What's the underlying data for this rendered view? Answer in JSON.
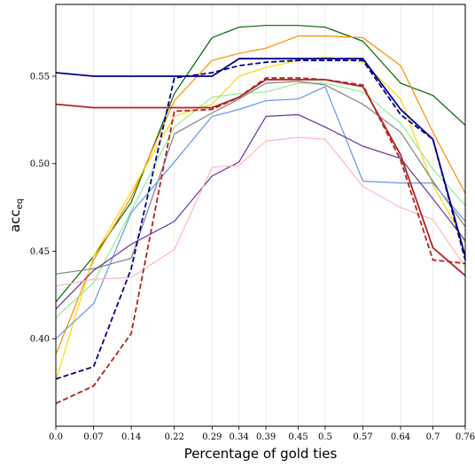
{
  "chart_data": {
    "type": "line",
    "title": "",
    "xlabel": "Percentage of gold ties",
    "ylabel": "acc",
    "ylabel_sub": "eq",
    "xlim": [
      0,
      0.76
    ],
    "ylim": [
      0.35,
      0.591
    ],
    "x": [
      0.0,
      0.07,
      0.14,
      0.22,
      0.29,
      0.34,
      0.39,
      0.45,
      0.5,
      0.57,
      0.64,
      0.7,
      0.76
    ],
    "x_tick_labels": [
      "0.0",
      "0.07",
      "0.14",
      "0.22",
      "0.29",
      "0.34",
      "0.39",
      "0.45",
      "0.5",
      "0.57",
      "0.64",
      "0.7",
      "0.76"
    ],
    "y_ticks": [
      0.4,
      0.45,
      0.5,
      0.55
    ],
    "y_tick_labels": [
      "0.40",
      "0.45",
      "0.50",
      "0.55"
    ],
    "grid": "vertical",
    "legend": "none",
    "series": [
      {
        "color": "#006400",
        "style": "solid",
        "width": 1.2,
        "values": [
          0.421,
          0.447,
          0.478,
          0.54,
          0.572,
          0.578,
          0.579,
          0.579,
          0.578,
          0.57,
          0.546,
          0.539,
          0.522
        ]
      },
      {
        "color": "#ff8c00",
        "style": "solid",
        "width": 1.2,
        "values": [
          0.391,
          0.445,
          0.481,
          0.536,
          0.559,
          0.563,
          0.566,
          0.573,
          0.573,
          0.572,
          0.556,
          0.518,
          0.483
        ]
      },
      {
        "color": "#ffd700",
        "style": "solid",
        "width": 1.2,
        "values": [
          0.376,
          0.447,
          0.484,
          0.527,
          0.534,
          0.55,
          0.555,
          0.559,
          0.561,
          0.558,
          0.537,
          0.488,
          0.455
        ]
      },
      {
        "color": "#90ee90",
        "style": "solid",
        "width": 1.2,
        "values": [
          0.412,
          0.432,
          0.473,
          0.521,
          0.538,
          0.54,
          0.541,
          0.546,
          0.546,
          0.541,
          0.523,
          0.497,
          0.476
        ]
      },
      {
        "color": "#808080",
        "style": "solid",
        "width": 1.2,
        "values": [
          0.437,
          0.44,
          0.446,
          0.517,
          0.529,
          0.537,
          0.546,
          0.547,
          0.545,
          0.534,
          0.518,
          0.49,
          0.464
        ]
      },
      {
        "color": "#6495ed",
        "style": "solid",
        "width": 1.2,
        "values": [
          0.4,
          0.42,
          0.472,
          0.501,
          0.527,
          0.531,
          0.536,
          0.537,
          0.544,
          0.49,
          0.489,
          0.489,
          0.467
        ]
      },
      {
        "color": "#663399",
        "style": "solid",
        "width": 1.2,
        "values": [
          0.417,
          0.439,
          0.454,
          0.467,
          0.493,
          0.501,
          0.527,
          0.528,
          0.521,
          0.51,
          0.503,
          0.48,
          0.456
        ]
      },
      {
        "color": "#ffb6c1",
        "style": "solid",
        "width": 1.2,
        "values": [
          0.43,
          0.434,
          0.435,
          0.451,
          0.498,
          0.499,
          0.513,
          0.515,
          0.514,
          0.487,
          0.475,
          0.468,
          0.441
        ]
      },
      {
        "color": "#00008b",
        "style": "solid",
        "width": 1.8,
        "values": [
          0.552,
          0.55,
          0.55,
          0.55,
          0.55,
          0.56,
          0.56,
          0.56,
          0.56,
          0.56,
          0.531,
          0.514,
          0.447
        ]
      },
      {
        "color": "#00008b",
        "style": "dashed",
        "width": 1.8,
        "values": [
          0.377,
          0.384,
          0.44,
          0.549,
          0.552,
          0.556,
          0.558,
          0.559,
          0.559,
          0.559,
          0.528,
          0.514,
          0.445
        ]
      },
      {
        "color": "#b22222",
        "style": "solid",
        "width": 1.8,
        "values": [
          0.534,
          0.532,
          0.532,
          0.532,
          0.532,
          0.538,
          0.548,
          0.548,
          0.548,
          0.544,
          0.505,
          0.452,
          0.436
        ]
      },
      {
        "color": "#b22222",
        "style": "dashed",
        "width": 1.8,
        "values": [
          0.363,
          0.373,
          0.403,
          0.53,
          0.531,
          0.538,
          0.549,
          0.549,
          0.548,
          0.545,
          0.502,
          0.445,
          0.443
        ]
      }
    ]
  }
}
